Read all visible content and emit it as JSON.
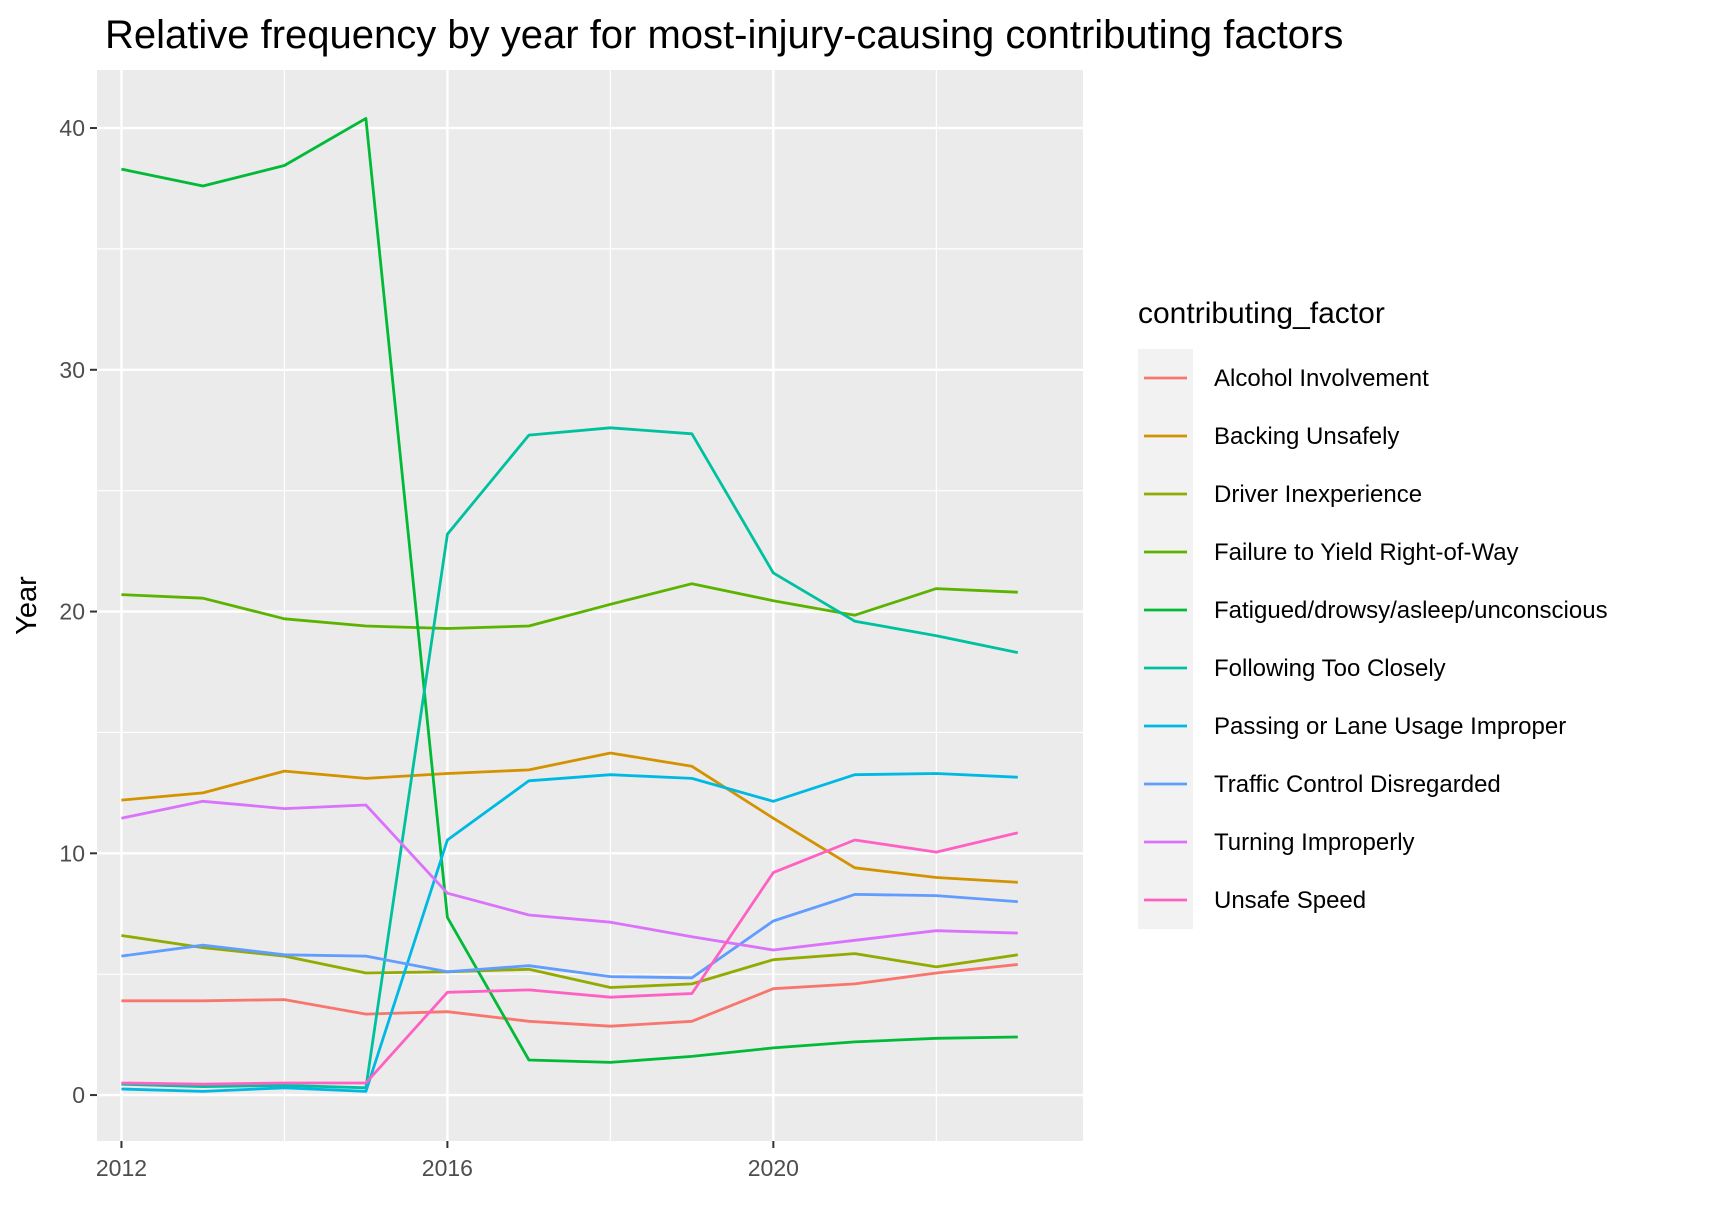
{
  "chart_data": {
    "type": "line",
    "title": "Relative frequency by year for most-injury-causing contributing factors",
    "xlabel": "",
    "ylabel": "Year",
    "x": [
      2012,
      2013,
      2014,
      2015,
      2016,
      2017,
      2018,
      2019,
      2020,
      2021,
      2022,
      2023
    ],
    "xlim": [
      2011.7,
      2023.8
    ],
    "ylim": [
      -1.9,
      42.4
    ],
    "x_ticks": [
      2012,
      2016,
      2020
    ],
    "x_tick_labels": [
      "2012",
      "2016",
      "2020"
    ],
    "y_ticks": [
      0,
      10,
      20,
      30,
      40
    ],
    "y_tick_labels": [
      "0",
      "10",
      "20",
      "30",
      "40"
    ],
    "grid": true,
    "background": "#ebebeb",
    "legend": {
      "title": "contributing_factor",
      "position": "right"
    },
    "series": [
      {
        "name": "Alcohol Involvement",
        "color": "#F8766D",
        "values": [
          3.9,
          3.9,
          3.95,
          3.35,
          3.45,
          3.05,
          2.85,
          3.05,
          4.4,
          4.6,
          5.05,
          5.4
        ]
      },
      {
        "name": "Backing Unsafely",
        "color": "#D39200",
        "values": [
          12.2,
          12.5,
          13.4,
          13.1,
          13.3,
          13.45,
          14.15,
          13.6,
          11.45,
          9.4,
          9.0,
          8.8
        ]
      },
      {
        "name": "Driver Inexperience",
        "color": "#93AA00",
        "values": [
          6.6,
          6.1,
          5.75,
          5.05,
          5.1,
          5.2,
          4.45,
          4.6,
          5.6,
          5.85,
          5.3,
          5.8
        ]
      },
      {
        "name": "Failure to Yield Right-of-Way",
        "color": "#5BB300",
        "values": [
          20.7,
          20.55,
          19.7,
          19.4,
          19.3,
          19.4,
          20.3,
          21.15,
          20.45,
          19.85,
          20.95,
          20.8
        ]
      },
      {
        "name": "Fatigued/drowsy/asleep/unconscious",
        "color": "#00BA38",
        "values": [
          38.3,
          37.6,
          38.45,
          40.4,
          7.35,
          1.45,
          1.35,
          1.6,
          1.95,
          2.2,
          2.35,
          2.4
        ]
      },
      {
        "name": "Following Too Closely",
        "color": "#00C19F",
        "values": [
          0.45,
          0.35,
          0.4,
          0.3,
          23.2,
          27.3,
          27.6,
          27.35,
          21.6,
          19.6,
          19.0,
          18.3
        ]
      },
      {
        "name": "Passing or Lane Usage Improper",
        "color": "#00B9E3",
        "values": [
          0.25,
          0.15,
          0.3,
          0.15,
          10.55,
          13.0,
          13.25,
          13.1,
          12.15,
          13.25,
          13.3,
          13.15
        ]
      },
      {
        "name": "Traffic Control Disregarded",
        "color": "#619CFF",
        "values": [
          5.75,
          6.2,
          5.8,
          5.75,
          5.1,
          5.35,
          4.9,
          4.85,
          7.2,
          8.3,
          8.25,
          8.0
        ]
      },
      {
        "name": "Turning Improperly",
        "color": "#DB72FB",
        "values": [
          11.45,
          12.15,
          11.85,
          12.0,
          8.35,
          7.45,
          7.15,
          6.55,
          6.0,
          6.4,
          6.8,
          6.7
        ]
      },
      {
        "name": "Unsafe Speed",
        "color": "#FF61C3",
        "values": [
          0.5,
          0.45,
          0.5,
          0.5,
          4.25,
          4.35,
          4.05,
          4.2,
          9.2,
          10.55,
          10.05,
          10.85
        ]
      }
    ]
  }
}
